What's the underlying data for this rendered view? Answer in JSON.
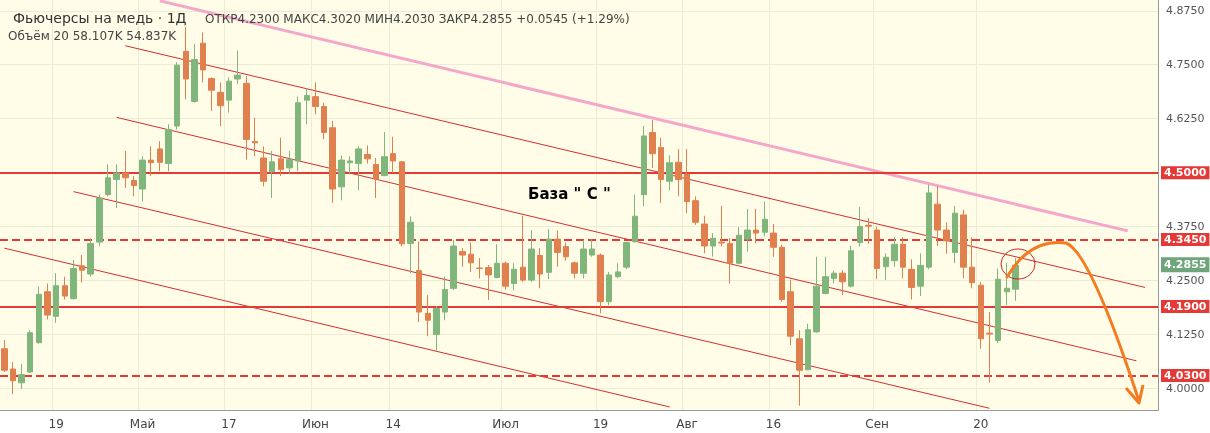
{
  "chart_data": {
    "type": "candlestick",
    "title": "Фьючерсы на медь · 1Д",
    "subtitle": "ОТКР4.2300 МАКС4.3020 МИН4.2030 ЗАКР4.2855 +0.0545 (+1.29%)",
    "annotations": [
      "Объём 20 58.107K 54.837K",
      "База \" C \"",
      "4.2855"
    ],
    "categories": [
      null,
      null,
      null,
      null,
      null,
      null,
      "19",
      null,
      null,
      null,
      null,
      null,
      null,
      null,
      null,
      null,
      "Май",
      null,
      null,
      null,
      null,
      null,
      null,
      null,
      null,
      null,
      "17",
      null,
      null,
      null,
      null,
      null,
      null,
      null,
      null,
      null,
      "Июн",
      null,
      null,
      null,
      null,
      null,
      null,
      null,
      null,
      "14",
      null,
      null,
      null,
      null,
      null,
      null,
      null,
      null,
      null,
      null,
      null,
      null,
      "Июл",
      null,
      null,
      null,
      null,
      null,
      null,
      null,
      null,
      null,
      null,
      "19",
      null,
      null,
      null,
      null,
      null,
      null,
      null,
      null,
      null,
      "Авг",
      null,
      null,
      null,
      null,
      null,
      null,
      null,
      null,
      null,
      "16",
      null,
      null,
      null,
      null,
      null,
      null,
      null,
      null,
      null,
      null,
      null,
      "Сен",
      null,
      null,
      null,
      null,
      null,
      null,
      null,
      null,
      null,
      null,
      null,
      "20",
      null,
      null,
      null,
      null,
      null,
      null,
      null,
      null,
      null,
      null,
      null,
      null,
      null,
      null,
      null,
      null,
      null,
      null,
      null,
      null
    ],
    "ohlc": [
      [
        4.092,
        4.112,
        4.038,
        4.042
      ],
      [
        4.045,
        4.061,
        3.987,
        4.018
      ],
      [
        4.013,
        4.057,
        3.999,
        4.032
      ],
      [
        4.038,
        4.135,
        4.036,
        4.129
      ],
      [
        4.106,
        4.236,
        4.104,
        4.218
      ],
      [
        4.224,
        4.243,
        4.16,
        4.17
      ],
      [
        4.167,
        4.267,
        4.152,
        4.238
      ],
      [
        4.238,
        4.259,
        4.206,
        4.214
      ],
      [
        4.208,
        4.298,
        4.206,
        4.278
      ],
      [
        4.284,
        4.309,
        4.245,
        4.274
      ],
      [
        4.265,
        4.348,
        4.259,
        4.336
      ],
      [
        4.339,
        4.449,
        4.329,
        4.441
      ],
      [
        4.449,
        4.519,
        4.445,
        4.488
      ],
      [
        4.484,
        4.519,
        4.418,
        4.499
      ],
      [
        4.499,
        4.55,
        4.465,
        4.488
      ],
      [
        4.482,
        4.492,
        4.445,
        4.47
      ],
      [
        4.462,
        4.538,
        4.433,
        4.529
      ],
      [
        4.529,
        4.561,
        4.492,
        4.523
      ],
      [
        4.555,
        4.573,
        4.503,
        4.524
      ],
      [
        4.521,
        4.612,
        4.503,
        4.6
      ],
      [
        4.608,
        4.756,
        4.6,
        4.749
      ],
      [
        4.781,
        4.837,
        4.67,
        4.717
      ],
      [
        4.665,
        4.798,
        4.662,
        4.762
      ],
      [
        4.8,
        4.825,
        4.709,
        4.738
      ],
      [
        4.718,
        4.721,
        4.643,
        4.691
      ],
      [
        4.686,
        4.709,
        4.608,
        4.655
      ],
      [
        4.668,
        4.721,
        4.639,
        4.712
      ],
      [
        4.717,
        4.783,
        4.705,
        4.726
      ],
      [
        4.707,
        4.724,
        4.53,
        4.577
      ],
      [
        4.572,
        4.627,
        4.538,
        4.569
      ],
      [
        4.534,
        4.561,
        4.468,
        4.48
      ],
      [
        4.502,
        4.55,
        4.441,
        4.525
      ],
      [
        4.532,
        4.581,
        4.492,
        4.507
      ],
      [
        4.511,
        4.55,
        4.496,
        4.53
      ],
      [
        4.527,
        4.676,
        4.503,
        4.662
      ],
      [
        4.668,
        4.695,
        4.612,
        4.679
      ],
      [
        4.676,
        4.709,
        4.635,
        4.653
      ],
      [
        4.653,
        4.662,
        4.577,
        4.593
      ],
      [
        4.604,
        4.62,
        4.43,
        4.462
      ],
      [
        4.467,
        4.54,
        4.436,
        4.529
      ],
      [
        4.523,
        4.538,
        4.496,
        4.527
      ],
      [
        4.521,
        4.561,
        4.459,
        4.555
      ],
      [
        4.542,
        4.563,
        4.521,
        4.532
      ],
      [
        4.519,
        4.534,
        4.441,
        4.485
      ],
      [
        4.493,
        4.594,
        4.492,
        4.537
      ],
      [
        4.544,
        4.583,
        4.499,
        4.527
      ],
      [
        4.525,
        4.527,
        4.329,
        4.335
      ],
      [
        4.336,
        4.399,
        4.267,
        4.385
      ],
      [
        4.273,
        4.34,
        4.154,
        4.177
      ],
      [
        4.174,
        4.216,
        4.121,
        4.158
      ],
      [
        4.125,
        4.191,
        4.088,
        4.185
      ],
      [
        4.177,
        4.259,
        4.158,
        4.229
      ],
      [
        4.232,
        4.344,
        4.228,
        4.33
      ],
      [
        4.317,
        4.325,
        4.282,
        4.309
      ],
      [
        4.311,
        4.338,
        4.27,
        4.291
      ],
      [
        4.279,
        4.302,
        4.255,
        4.278
      ],
      [
        4.28,
        4.286,
        4.205,
        4.263
      ],
      [
        4.257,
        4.334,
        4.255,
        4.29
      ],
      [
        4.29,
        4.294,
        4.229,
        4.237
      ],
      [
        4.243,
        4.29,
        4.228,
        4.276
      ],
      [
        4.281,
        4.4,
        4.247,
        4.251
      ],
      [
        4.251,
        4.367,
        4.247,
        4.323
      ],
      [
        4.308,
        4.325,
        4.232,
        4.265
      ],
      [
        4.269,
        4.369,
        4.253,
        4.346
      ],
      [
        4.346,
        4.366,
        4.282,
        4.315
      ],
      [
        4.329,
        4.338,
        4.296,
        4.305
      ],
      [
        4.291,
        4.294,
        4.255,
        4.267
      ],
      [
        4.267,
        4.344,
        4.255,
        4.323
      ],
      [
        4.309,
        4.346,
        4.305,
        4.323
      ],
      [
        4.309,
        4.313,
        4.174,
        4.201
      ],
      [
        4.201,
        4.27,
        4.193,
        4.263
      ],
      [
        4.259,
        4.29,
        4.255,
        4.27
      ],
      [
        4.281,
        4.34,
        4.276,
        4.338
      ],
      [
        4.34,
        4.449,
        4.338,
        4.399
      ],
      [
        4.449,
        4.608,
        4.422,
        4.585
      ],
      [
        4.593,
        4.622,
        4.511,
        4.544
      ],
      [
        4.558,
        4.581,
        4.43,
        4.484
      ],
      [
        4.48,
        4.54,
        4.459,
        4.523
      ],
      [
        4.524,
        4.555,
        4.445,
        4.484
      ],
      [
        4.496,
        4.555,
        4.406,
        4.433
      ],
      [
        4.435,
        4.445,
        4.379,
        4.385
      ],
      [
        4.381,
        4.4,
        4.313,
        4.33
      ],
      [
        4.33,
        4.36,
        4.305,
        4.348
      ],
      [
        4.339,
        4.423,
        4.329,
        4.337
      ],
      [
        4.336,
        4.348,
        4.243,
        4.29
      ],
      [
        4.29,
        4.374,
        4.288,
        4.355
      ],
      [
        4.346,
        4.416,
        4.317,
        4.367
      ],
      [
        4.367,
        4.416,
        4.336,
        4.36
      ],
      [
        4.362,
        4.433,
        4.352,
        4.392
      ],
      [
        4.36,
        4.381,
        4.305,
        4.327
      ],
      [
        4.327,
        4.333,
        4.201,
        4.206
      ],
      [
        4.224,
        4.251,
        4.1,
        4.121
      ],
      [
        4.115,
        4.135,
        3.96,
        4.042
      ],
      [
        4.043,
        4.15,
        4.043,
        4.136
      ],
      [
        4.131,
        4.305,
        4.129,
        4.237
      ],
      [
        4.22,
        4.305,
        4.218,
        4.259
      ],
      [
        4.255,
        4.273,
        4.243,
        4.267
      ],
      [
        4.267,
        4.274,
        4.216,
        4.247
      ],
      [
        4.237,
        4.33,
        4.234,
        4.319
      ],
      [
        4.338,
        4.42,
        4.329,
        4.375
      ],
      [
        4.378,
        4.395,
        4.335,
        4.376
      ],
      [
        4.367,
        4.375,
        4.253,
        4.278
      ],
      [
        4.282,
        4.313,
        4.251,
        4.304
      ],
      [
        4.296,
        4.35,
        4.282,
        4.334
      ],
      [
        4.334,
        4.35,
        4.255,
        4.281
      ],
      [
        4.276,
        4.299,
        4.206,
        4.234
      ],
      [
        4.237,
        4.313,
        4.214,
        4.285
      ],
      [
        4.281,
        4.472,
        4.276,
        4.453
      ],
      [
        4.427,
        4.468,
        4.33,
        4.367
      ],
      [
        4.367,
        4.385,
        4.312,
        4.342
      ],
      [
        4.315,
        4.423,
        4.29,
        4.406
      ],
      [
        4.402,
        4.414,
        4.255,
        4.281
      ],
      [
        4.281,
        4.35,
        4.232,
        4.245
      ],
      [
        4.239,
        4.247,
        4.092,
        4.115
      ],
      [
        4.128,
        4.177,
        4.014,
        4.126
      ],
      [
        4.111,
        4.278,
        4.105,
        4.253
      ],
      [
        4.224,
        4.29,
        4.193,
        4.232
      ],
      [
        4.23,
        4.302,
        4.203,
        4.2855
      ],
      null,
      null,
      null,
      null,
      null,
      null,
      null,
      null,
      null,
      null,
      null,
      null,
      null,
      null,
      null,
      null
    ],
    "colors": [
      "#e0804f",
      "#e0804f",
      "#80b67c",
      "#80b67c",
      "#80b67c",
      "#e0804f",
      "#80b67c",
      "#e0804f",
      "#80b67c",
      "#e0804f",
      "#80b67c",
      "#80b67c",
      "#80b67c",
      "#80b67c",
      "#e0804f",
      "#e0804f",
      "#80b67c",
      "#e0804f",
      "#e0804f",
      "#80b67c",
      "#80b67c",
      "#e0804f",
      "#80b67c",
      "#e0804f",
      "#e0804f",
      "#e0804f",
      "#80b67c",
      "#80b67c",
      "#e0804f",
      "#e0804f",
      "#e0804f",
      "#80b67c",
      "#e0804f",
      "#80b67c",
      "#80b67c",
      "#80b67c",
      "#e0804f",
      "#e0804f",
      "#e0804f",
      "#80b67c",
      "#80b67c",
      "#80b67c",
      "#e0804f",
      "#e0804f",
      "#80b67c",
      "#e0804f",
      "#e0804f",
      "#80b67c",
      "#e0804f",
      "#e0804f",
      "#80b67c",
      "#80b67c",
      "#80b67c",
      "#e0804f",
      "#e0804f",
      "#e0804f",
      "#e0804f",
      "#80b67c",
      "#e0804f",
      "#80b67c",
      "#e0804f",
      "#80b67c",
      "#e0804f",
      "#80b67c",
      "#e0804f",
      "#e0804f",
      "#e0804f",
      "#80b67c",
      "#80b67c",
      "#e0804f",
      "#80b67c",
      "#80b67c",
      "#80b67c",
      "#80b67c",
      "#80b67c",
      "#e0804f",
      "#e0804f",
      "#80b67c",
      "#e0804f",
      "#e0804f",
      "#e0804f",
      "#e0804f",
      "#80b67c",
      "#e0804f",
      "#e0804f",
      "#80b67c",
      "#80b67c",
      "#e0804f",
      "#80b67c",
      "#e0804f",
      "#e0804f",
      "#e0804f",
      "#e0804f",
      "#80b67c",
      "#80b67c",
      "#80b67c",
      "#80b67c",
      "#e0804f",
      "#80b67c",
      "#80b67c",
      "#e0804f",
      "#e0804f",
      "#80b67c",
      "#80b67c",
      "#e0804f",
      "#e0804f",
      "#80b67c",
      "#80b67c",
      "#e0804f",
      "#e0804f",
      "#80b67c",
      "#e0804f",
      "#e0804f",
      "#e0804f",
      "#e0804f",
      "#80b67c",
      "#80b67c",
      "#80b67c",
      null,
      null,
      null,
      null,
      null,
      null,
      null,
      null,
      null,
      null,
      null,
      null,
      null,
      null,
      null,
      null
    ],
    "series": [
      {
        "type": "line",
        "color": "#f4a7c9",
        "values": [
          null,
          null,
          null,
          null,
          null,
          null,
          null,
          null,
          null,
          null,
          null,
          null,
          null,
          null,
          null,
          null,
          null,
          null,
          4.898,
          null,
          null,
          null,
          null,
          null,
          null,
          null,
          null,
          null,
          null,
          null,
          null,
          null,
          null,
          null,
          null,
          null,
          null,
          null,
          null,
          null,
          null,
          null,
          null,
          null,
          null,
          null,
          null,
          null,
          null,
          null,
          null,
          null,
          null,
          null,
          null,
          null,
          null,
          null,
          null,
          null,
          null,
          null,
          null,
          null,
          null,
          null,
          null,
          null,
          null,
          null,
          null,
          null,
          null,
          null,
          null,
          null,
          null,
          null,
          null,
          null,
          null,
          null,
          null,
          null,
          null,
          null,
          null,
          null,
          null,
          null,
          null,
          null,
          null,
          null,
          null,
          null,
          null,
          null,
          null,
          null,
          null,
          null,
          null,
          null,
          null,
          null,
          null,
          null,
          null,
          null,
          null,
          null,
          null,
          null,
          null,
          null,
          null,
          null,
          null,
          null,
          null,
          null,
          null,
          null,
          null,
          null,
          null,
          null,
          null,
          null,
          4.365,
          null,
          null,
          null
        ]
      },
      {
        "type": "line",
        "color": "#d32f2f",
        "values": [
          null,
          null,
          null,
          null,
          null,
          null,
          null,
          null,
          null,
          null,
          null,
          null,
          null,
          null,
          4.794,
          null,
          null,
          null,
          null,
          null,
          null,
          null,
          null,
          null,
          null,
          null,
          null,
          null,
          null,
          null,
          null,
          null,
          null,
          null,
          null,
          null,
          null,
          null,
          null,
          null,
          null,
          null,
          null,
          null,
          null,
          null,
          null,
          null,
          null,
          null,
          null,
          null,
          null,
          null,
          null,
          null,
          null,
          null,
          null,
          null,
          null,
          null,
          null,
          null,
          null,
          null,
          null,
          null,
          null,
          null,
          null,
          null,
          null,
          null,
          null,
          null,
          null,
          null,
          null,
          null,
          null,
          null,
          null,
          null,
          null,
          null,
          null,
          null,
          null,
          null,
          null,
          null,
          null,
          null,
          null,
          null,
          null,
          null,
          null,
          null,
          null,
          null,
          null,
          null,
          null,
          null,
          null,
          null,
          null,
          null,
          null,
          null,
          null,
          null,
          null,
          null,
          null,
          null,
          null,
          null,
          null,
          null,
          null,
          null,
          null,
          null,
          null,
          null,
          null,
          null,
          null,
          null,
          4.234,
          null
        ]
      },
      {
        "type": "line",
        "color": "#d32f2f",
        "values": [
          null,
          null,
          null,
          null,
          null,
          null,
          null,
          null,
          null,
          null,
          null,
          null,
          null,
          4.628,
          null,
          null,
          null,
          null,
          null,
          null,
          null,
          null,
          null,
          null,
          null,
          null,
          null,
          null,
          null,
          null,
          null,
          null,
          null,
          null,
          null,
          null,
          null,
          null,
          null,
          null,
          null,
          null,
          null,
          null,
          null,
          null,
          null,
          null,
          null,
          null,
          null,
          null,
          null,
          null,
          null,
          null,
          null,
          null,
          null,
          null,
          null,
          null,
          null,
          null,
          null,
          null,
          null,
          null,
          null,
          null,
          null,
          null,
          null,
          null,
          null,
          null,
          null,
          null,
          null,
          null,
          null,
          null,
          null,
          null,
          null,
          null,
          null,
          null,
          null,
          null,
          null,
          null,
          null,
          null,
          null,
          null,
          null,
          null,
          null,
          null,
          null,
          null,
          null,
          null,
          null,
          null,
          null,
          null,
          null,
          null,
          null,
          null,
          null,
          null,
          null,
          null,
          null,
          null,
          null,
          null,
          null,
          null,
          null,
          null,
          null,
          null,
          null,
          null,
          null,
          null,
          null,
          4.064,
          null,
          null
        ]
      },
      {
        "type": "line",
        "color": "#d32f2f",
        "values": [
          null,
          null,
          null,
          null,
          null,
          null,
          null,
          null,
          4.456,
          null,
          null,
          null,
          null,
          null,
          null,
          null,
          null,
          null,
          null,
          null,
          null,
          null,
          null,
          null,
          null,
          null,
          null,
          null,
          null,
          null,
          null,
          null,
          null,
          null,
          null,
          null,
          null,
          null,
          null,
          null,
          null,
          null,
          null,
          null,
          null,
          null,
          null,
          null,
          null,
          null,
          null,
          null,
          null,
          null,
          null,
          null,
          null,
          null,
          null,
          null,
          null,
          null,
          null,
          null,
          null,
          null,
          null,
          null,
          null,
          null,
          null,
          null,
          null,
          null,
          null,
          null,
          null,
          null,
          null,
          null,
          null,
          null,
          null,
          null,
          null,
          null,
          null,
          null,
          null,
          null,
          null,
          null,
          null,
          null,
          null,
          null,
          null,
          null,
          null,
          null,
          null,
          null,
          null,
          null,
          null,
          null,
          null,
          null,
          null,
          null,
          null,
          null,
          null,
          null,
          3.954,
          null,
          null,
          null,
          null,
          null,
          null,
          null,
          null,
          null,
          null,
          null,
          null,
          null,
          null,
          null,
          null,
          null,
          null,
          null
        ]
      },
      {
        "type": "line",
        "color": "#d32f2f",
        "values": [
          4.325,
          null,
          null,
          null,
          null,
          null,
          null,
          null,
          null,
          null,
          null,
          null,
          null,
          null,
          null,
          null,
          null,
          null,
          null,
          null,
          null,
          null,
          null,
          null,
          null,
          null,
          null,
          null,
          null,
          null,
          null,
          null,
          null,
          null,
          null,
          null,
          null,
          null,
          null,
          null,
          null,
          null,
          null,
          null,
          null,
          null,
          null,
          null,
          null,
          null,
          null,
          null,
          null,
          null,
          null,
          null,
          null,
          null,
          null,
          null,
          null,
          null,
          null,
          null,
          null,
          null,
          null,
          null,
          null,
          null,
          null,
          null,
          null,
          null,
          null,
          null,
          null,
          3.957,
          null,
          null,
          null,
          null,
          null,
          null,
          null,
          null,
          null,
          null,
          null,
          null,
          null,
          null,
          null,
          null,
          null,
          null,
          null,
          null,
          null,
          null,
          null,
          null,
          null,
          null,
          null,
          null,
          null,
          null,
          null,
          null,
          null,
          null,
          null,
          null,
          null,
          null,
          null,
          null,
          null,
          null,
          null,
          null,
          null,
          null,
          null,
          null,
          null,
          null,
          null,
          null,
          null,
          null,
          null,
          null
        ]
      }
    ],
    "ref_lines": [
      {
        "axis": "y",
        "value": 4.5,
        "label": "4.5000",
        "color": "#e53935",
        "line_style": "solid"
      },
      {
        "axis": "y",
        "value": 4.345,
        "label": "4.3450",
        "color": "#e53935",
        "line_style": "dashed"
      },
      {
        "axis": "y",
        "value": 4.19,
        "label": "4.1900",
        "color": "#e53935",
        "line_style": "solid"
      },
      {
        "axis": "y",
        "value": 4.03,
        "label": "4.0300",
        "color": "#e53935",
        "line_style": "dashed"
      }
    ],
    "ylim": [
      3.95,
      4.9
    ],
    "yticks": [
      {
        "value": 4,
        "label": "4.0000"
      },
      {
        "value": 4.125,
        "label": "4.1250"
      },
      {
        "value": 4.25,
        "label": "4.2500"
      },
      {
        "value": 4.375,
        "label": "4.3750"
      },
      {
        "value": 4.5,
        "label": null
      },
      {
        "value": 4.625,
        "label": "4.6250"
      },
      {
        "value": 4.75,
        "label": "4.7500"
      },
      {
        "value": 4.875,
        "label": "4.8750"
      }
    ],
    "grid": true
  }
}
